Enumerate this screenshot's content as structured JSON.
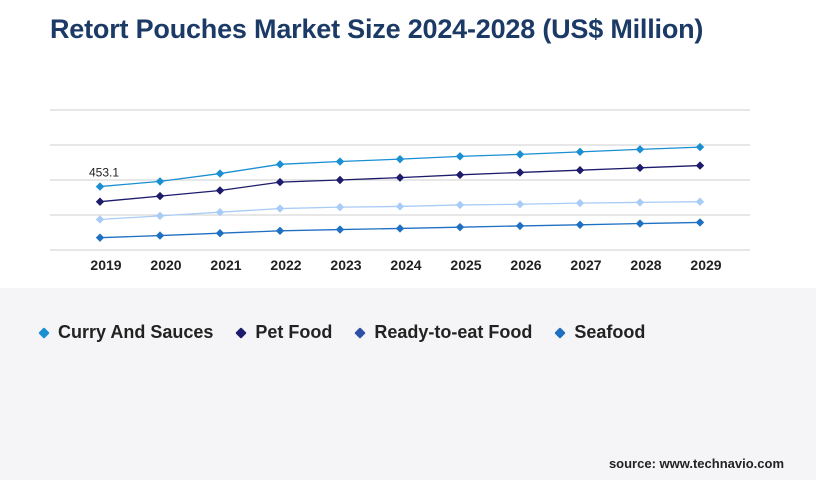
{
  "title": "Retort Pouches Market Size 2024-2028 (US$ Million)",
  "source": "source: www.technavio.com",
  "chart_data": {
    "type": "line",
    "title": "Retort Pouches Market Size 2024-2028 (US$ Million)",
    "xlabel": "",
    "ylabel": "",
    "categories": [
      "2019",
      "2020",
      "2021",
      "2022",
      "2023",
      "2024",
      "2025",
      "2026",
      "2027",
      "2028",
      "2029"
    ],
    "grid": true,
    "legend": "bottom-left",
    "ylim": [
      0,
      1000
    ],
    "series": [
      {
        "name": "Curry And Sauces",
        "color": "#1a8fd2",
        "values": [
          453.1,
          490,
          546,
          612,
          632,
          649,
          669,
          683,
          701,
          719,
          735
        ]
      },
      {
        "name": "Pet Food",
        "color": "#1d1b6b",
        "values": [
          345,
          385,
          425,
          485,
          500,
          517,
          537,
          554,
          570,
          587,
          603
        ]
      },
      {
        "name": "Ready-to-eat Food",
        "color": "#a9ccf7",
        "values": [
          218,
          244,
          270,
          296,
          306,
          311,
          322,
          327,
          335,
          340,
          345
        ]
      },
      {
        "name": "Seafood",
        "color": "#1f70c2",
        "values": [
          88,
          103,
          120,
          137,
          146,
          154,
          163,
          172,
          180,
          189,
          197
        ]
      }
    ],
    "data_labels": [
      {
        "series": 0,
        "index": 0,
        "text": "453.1"
      }
    ]
  },
  "legend_items": [
    {
      "label": "Curry And Sauces",
      "color": "#1a8fd2"
    },
    {
      "label": "Pet Food",
      "color": "#1d1b6b"
    },
    {
      "label": "Ready-to-eat Food",
      "color": "#2e4fa8"
    },
    {
      "label": "Seafood",
      "color": "#1f70c2"
    }
  ]
}
